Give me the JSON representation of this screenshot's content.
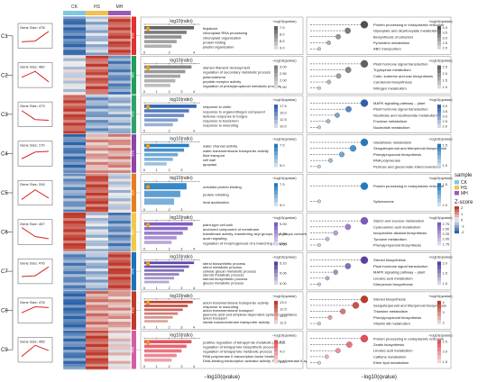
{
  "chart_data": {
    "type": "composite",
    "samples": [
      "CK",
      "HS",
      "MH"
    ],
    "sample_colors": [
      "#7ec8e3",
      "#f2c14e",
      "#9b59b6"
    ],
    "legend": {
      "sample_title": "sample",
      "zscore_title": "Z-score",
      "zscore_ticks": [
        "2",
        "1",
        "0",
        "-1",
        "-2"
      ]
    },
    "clusters": [
      {
        "id": "C1",
        "gene_label": "Gene Size: 478",
        "trend": [
          0.25,
          0.3,
          0.95
        ],
        "band": "#e03030",
        "n": "478",
        "heat": [
          -1.3,
          -0.5,
          1.3
        ],
        "go_title": "log10(ratio)",
        "go_color": "#606060",
        "go_ticks": [
          "0",
          "2",
          "4"
        ],
        "go_cbar_title": "−log10(qvalue)",
        "go_cbar": [
          "7.5",
          "8.0",
          "8.5",
          "9.0"
        ],
        "go_terms": [
          {
            "label": "thylakoid",
            "value": 4.0,
            "shade": 0.95
          },
          {
            "label": "chloroplast RNA processing",
            "value": 3.4,
            "shade": 0.75
          },
          {
            "label": "chloroplast organization",
            "value": 3.0,
            "shade": 0.55
          },
          {
            "label": "protein folding",
            "value": 2.6,
            "shade": 0.4
          },
          {
            "label": "plastid organization",
            "value": 2.2,
            "shade": 0.25
          }
        ],
        "kegg_color": "#505050",
        "kegg_cbar_title": "−log10(qvalue)",
        "kegg_cbar": [
          "4.0",
          "3.5",
          "3.0",
          "2.5",
          "2.0"
        ],
        "kegg_terms": [
          {
            "label": "Protein processing in endoplasmic reticulum",
            "q": 4.0
          },
          {
            "label": "Glyoxylate and dicarboxylate metabolism",
            "q": 3.3
          },
          {
            "label": "Biosynthesis of cofactors",
            "q": 2.9
          },
          {
            "label": "Pyrimidine metabolism",
            "q": 2.5
          },
          {
            "label": "ABC transporters",
            "q": 2.1
          }
        ]
      },
      {
        "id": "C2",
        "gene_label": "Gene Size: 482",
        "trend": [
          0.5,
          0.9,
          0.2
        ],
        "band": "#1e9e5a",
        "n": "482",
        "heat": [
          -0.2,
          1.2,
          -1.0
        ],
        "go_title": "log10(ratio)",
        "go_color": "#808080",
        "go_ticks": [
          "0",
          "1",
          "2",
          "3",
          "4"
        ],
        "go_cbar_title": "−log10(qvalue)",
        "go_cbar": [
          "3.00",
          "2.50",
          "2.00",
          "1.50"
        ],
        "go_terms": [
          {
            "label": "stamen filament development",
            "value": 3.8,
            "shade": 0.9
          },
          {
            "label": "regulation of secondary metabolic process",
            "value": 3.3,
            "shade": 0.7
          },
          {
            "label": "plasmodesma",
            "value": 2.9,
            "shade": 0.55
          },
          {
            "label": "peptide receptor activity",
            "value": 2.5,
            "shade": 0.4
          },
          {
            "label": "regulation of phenylpropanoid metabolic process",
            "value": 2.1,
            "shade": 0.25
          }
        ],
        "kegg_color": "#606060",
        "kegg_cbar_title": "−log10(qvalue)",
        "kegg_cbar": [
          "2.5",
          "2.0",
          "1.5",
          "1.0"
        ],
        "kegg_terms": [
          {
            "label": "Plant hormone signal transduction",
            "q": 2.6
          },
          {
            "label": "Tryptophan metabolism",
            "q": 2.1
          },
          {
            "label": "Cutin, suberine and wax biosynthesis",
            "q": 1.8
          },
          {
            "label": "Carotenoid biosynthesis",
            "q": 1.5
          },
          {
            "label": "Nitrogen metabolism",
            "q": 1.2
          }
        ]
      },
      {
        "id": "C3",
        "gene_label": "Gene Size: 473",
        "trend": [
          0.9,
          0.3,
          0.25
        ],
        "band": "#2fa36b",
        "n": "473",
        "heat": [
          1.3,
          -0.8,
          -0.6
        ],
        "go_title": "log10(ratio)",
        "go_color": "#2d5fb0",
        "go_ticks": [
          "0",
          "2",
          "4"
        ],
        "go_cbar_title": "−log10(qvalue)",
        "go_cbar": [
          "17.5",
          "15.0",
          "12.5",
          "10.0"
        ],
        "go_terms": [
          {
            "label": "response to chitin",
            "value": 4.2,
            "shade": 0.95
          },
          {
            "label": "response to organonitrogen compound",
            "value": 3.6,
            "shade": 0.75
          },
          {
            "label": "defense response to fungus",
            "value": 3.2,
            "shade": 0.55
          },
          {
            "label": "response to bacterium",
            "value": 2.7,
            "shade": 0.4
          },
          {
            "label": "response to wounding",
            "value": 2.3,
            "shade": 0.25
          }
        ],
        "kegg_color": "#2d5fb0",
        "kegg_cbar_title": "−log10(qvalue)",
        "kegg_cbar": [
          "4.0",
          "3.5",
          "3.0",
          "2.5",
          "2.0"
        ],
        "kegg_terms": [
          {
            "label": "MAPK signaling pathway – plant",
            "q": 4.0
          },
          {
            "label": "Plant hormone signal transduction",
            "q": 3.3
          },
          {
            "label": "Nicotinate and nicotinamide metabolism",
            "q": 2.8
          },
          {
            "label": "Fructose metabolism",
            "q": 2.4
          },
          {
            "label": "Nucleotide metabolism",
            "q": 2.0
          }
        ]
      },
      {
        "id": "C4",
        "gene_label": "Gene Size: 170",
        "trend": [
          0.3,
          0.75,
          0.8
        ],
        "band": "#8e44ad",
        "n": "170",
        "heat": [
          -1.2,
          0.6,
          0.7
        ],
        "go_title": "log10(ratio)",
        "go_color": "#1f7bc4",
        "go_ticks": [
          "0",
          "1",
          "2",
          "3"
        ],
        "go_cbar_title": "−log10(qvalue)",
        "go_cbar": [
          "7.5",
          "5.0"
        ],
        "go_terms": [
          {
            "label": "water channel activity",
            "value": 3.6,
            "shade": 0.95
          },
          {
            "label": "water transmembrane transporter activity",
            "value": 3.2,
            "shade": 0.75
          },
          {
            "label": "fluid transport",
            "value": 2.7,
            "shade": 0.5
          },
          {
            "label": "cell wall",
            "value": 2.3,
            "shade": 0.35
          },
          {
            "label": "apoplast",
            "value": 1.8,
            "shade": 0.2
          }
        ],
        "kegg_color": "#1f7bc4",
        "kegg_cbar_title": "−log10(qvalue)",
        "kegg_cbar": [
          "1.5",
          "1.0"
        ],
        "kegg_terms": [
          {
            "label": "Glutathione metabolism",
            "q": 1.7
          },
          {
            "label": "Sesquiterpenoid and triterpenoid biosynthesis",
            "q": 1.5
          },
          {
            "label": "Phenylpropanoid biosynthesis",
            "q": 1.3
          },
          {
            "label": "RNA polymerase",
            "q": 1.1
          },
          {
            "label": "Pentose and glucuronate interconversions",
            "q": 0.9
          }
        ]
      },
      {
        "id": "C5",
        "gene_label": "Gene Size: 316",
        "trend": [
          0.2,
          0.85,
          0.3
        ],
        "band": "#e87d1e",
        "n": "316",
        "heat": [
          -0.9,
          1.3,
          -0.3
        ],
        "go_title": "log10(ratio)",
        "go_color": "#1f7bc4",
        "go_ticks": [
          "0",
          "1",
          "2",
          "3"
        ],
        "go_cbar_title": "−log10(qvalue)",
        "go_cbar": [
          "7.5",
          "5.0"
        ],
        "go_terms": [
          {
            "label": "unfolded protein binding",
            "value": 3.4,
            "shade": 0.85
          },
          {
            "label": "protein refolding",
            "value": 2.9,
            "shade": 0.6
          },
          {
            "label": "heat acclimation",
            "value": 2.4,
            "shade": 0.4
          }
        ],
        "kegg_color": "#1f7bc4",
        "kegg_cbar_title": "−log10(qvalue)",
        "kegg_cbar": [
          "1.5",
          "1.0"
        ],
        "kegg_terms": [
          {
            "label": "Protein processing in endoplasmic reticulum",
            "q": 1.6
          },
          {
            "label": "Spliceosome",
            "q": 1.2
          }
        ]
      },
      {
        "id": "C6",
        "gene_label": "Gene Size: 457",
        "trend": [
          0.95,
          0.35,
          0.2
        ],
        "band": "#f2c84b",
        "n": "457",
        "heat": [
          1.4,
          -0.4,
          -1.0
        ],
        "go_title": "log10(ratio)",
        "go_color": "#7e57c2",
        "go_ticks": [
          "0",
          "1",
          "2",
          "3",
          "4"
        ],
        "go_cbar_title": "−log10(qvalue)",
        "go_cbar": [
          "5.00",
          "4.75",
          "4.50"
        ],
        "go_terms": [
          {
            "label": "plant-type cell wall",
            "value": 3.9,
            "shade": 0.95
          },
          {
            "label": "anchored component of membrane",
            "value": 3.5,
            "shade": 0.8
          },
          {
            "label": "transferase activity, transferring acyl groups, acyl groups converted into alkyl on transfer",
            "value": 3.1,
            "shade": 0.65
          },
          {
            "label": "auxin signaling",
            "value": 2.6,
            "shade": 0.5
          },
          {
            "label": "regulation of morphogenesis of a branching structure",
            "value": 2.2,
            "shade": 0.3
          }
        ],
        "kegg_color": "#7e57c2",
        "kegg_cbar_title": "−log10(qvalue)",
        "kegg_cbar": [
          "2.75",
          "2.50",
          "2.25",
          "2.00",
          "1.75"
        ],
        "kegg_terms": [
          {
            "label": "Starch and sucrose metabolism",
            "q": 2.8
          },
          {
            "label": "Cyanoamino acid metabolism",
            "q": 2.4
          },
          {
            "label": "Isoquinoline alkaloid biosynthesis",
            "q": 2.1
          },
          {
            "label": "Tyrosine metabolism",
            "q": 1.9
          },
          {
            "label": "Phenylpropanoid biosynthesis",
            "q": 1.7
          }
        ]
      },
      {
        "id": "C7",
        "gene_label": "Gene Size: 476",
        "trend": [
          0.3,
          0.35,
          0.95
        ],
        "band": "#1a73b8",
        "n": "476",
        "heat": [
          -1.0,
          -0.6,
          1.4
        ],
        "go_title": "log10(ratio)",
        "go_color": "#5a3fa6",
        "go_ticks": [
          "0",
          "1",
          "2",
          "3",
          "4"
        ],
        "go_cbar_title": "−log10(qvalue)",
        "go_cbar": [
          "5.10",
          "5.05",
          "5.00"
        ],
        "go_terms": [
          {
            "label": "sterol biosynthetic process",
            "value": 4.0,
            "shade": 0.95
          },
          {
            "label": "sterol metabolic process",
            "value": 3.6,
            "shade": 0.8
          },
          {
            "label": "cellular glucan metabolic process",
            "value": 3.2,
            "shade": 0.65
          },
          {
            "label": "steroid metabolic process",
            "value": 2.8,
            "shade": 0.5
          },
          {
            "label": "steroid biosynthetic process",
            "value": 2.4,
            "shade": 0.35
          },
          {
            "label": "glucan metabolic process",
            "value": 2.0,
            "shade": 0.2
          }
        ],
        "kegg_color": "#5a3fa6",
        "kegg_cbar_title": "−log10(qvalue)",
        "kegg_cbar": [
          "2.0",
          "1.5",
          "1.0"
        ],
        "kegg_terms": [
          {
            "label": "Steroid biosynthesis",
            "q": 2.1
          },
          {
            "label": "Plant hormone signal transduction",
            "q": 1.7
          },
          {
            "label": "MAPK signaling pathway – plant",
            "q": 1.4
          },
          {
            "label": "Linoleic acid metabolism",
            "q": 1.2
          },
          {
            "label": "Diterpenoid biosynthesis",
            "q": 1.0
          }
        ]
      },
      {
        "id": "C8",
        "gene_label": "Gene Size: 478",
        "trend": [
          0.5,
          0.9,
          0.85
        ],
        "band": "#c0392b",
        "n": "478",
        "heat": [
          -1.4,
          0.8,
          0.6
        ],
        "go_title": "log10(ratio)",
        "go_color": "#c0392b",
        "go_ticks": [
          "0",
          "1",
          "2",
          "3",
          "4"
        ],
        "go_cbar_title": "−log10(qvalue)",
        "go_cbar": [
          "13.0",
          "12.5",
          "12.0",
          "11.5"
        ],
        "go_terms": [
          {
            "label": "anion transmembrane transporter activity",
            "value": 3.9,
            "shade": 0.95
          },
          {
            "label": "response to wounding",
            "value": 3.5,
            "shade": 0.8
          },
          {
            "label": "anion transmembrane transport",
            "value": 3.1,
            "shade": 0.65
          },
          {
            "label": "jasmonic acid and ethylene-dependent systemic resistance",
            "value": 2.7,
            "shade": 0.5
          },
          {
            "label": "anion transport",
            "value": 2.3,
            "shade": 0.35
          },
          {
            "label": "nitrate transmembrane transporter activity",
            "value": 1.9,
            "shade": 0.2
          }
        ],
        "kegg_color": "#c0392b",
        "kegg_cbar_title": "−log10(qvalue)",
        "kegg_cbar": [
          "4",
          "3",
          "2"
        ],
        "kegg_terms": [
          {
            "label": "Steroid biosynthesis",
            "q": 4.2
          },
          {
            "label": "Sesquiterpenoid and triterpenoid biosynthesis",
            "q": 3.8
          },
          {
            "label": "Thiamine metabolism",
            "q": 3.2
          },
          {
            "label": "Phenylpropanoid biosynthesis",
            "q": 2.6
          },
          {
            "label": "Vitamin B6 metabolism",
            "q": 2.1
          }
        ]
      },
      {
        "id": "C9",
        "gene_label": "Gene Size: 456",
        "trend": [
          0.2,
          0.95,
          0.6
        ],
        "band": "#d35ea8",
        "n": "456",
        "heat": [
          -1.2,
          1.3,
          0.2
        ],
        "go_title": "log10(ratio)",
        "go_color": "#e74c5b",
        "go_ticks": [
          "0",
          "1",
          "2",
          "3",
          "4"
        ],
        "go_cbar_title": "−log10(qvalue)",
        "go_cbar": [
          "4.2",
          "4.0",
          "3.8"
        ],
        "go_terms": [
          {
            "label": "positive regulation of tetrapyrrole metabolic process",
            "value": 3.8,
            "shade": 0.95
          },
          {
            "label": "regulation of tetrapyrrole biosynthetic process",
            "value": 3.4,
            "shade": 0.8
          },
          {
            "label": "regulation of tetrapyrrole metabolic process",
            "value": 3.0,
            "shade": 0.65
          },
          {
            "label": "RNA polymerase II transcription factor binding",
            "value": 2.6,
            "shade": 0.5
          },
          {
            "label": "DNA-binding transcription activator activity, RNA polymerase II-specific",
            "value": 2.2,
            "shade": 0.3
          }
        ],
        "kegg_color": "#e74c5b",
        "kegg_cbar_title": "−log10(qvalue)",
        "kegg_cbar": [
          "2.5",
          "2.0",
          "1.5"
        ],
        "kegg_terms": [
          {
            "label": "Protein processing in endoplasmic reticulum",
            "q": 2.6
          },
          {
            "label": "Zeatin biosynthesis",
            "q": 2.2
          },
          {
            "label": "Linoleic acid metabolism",
            "q": 1.9
          },
          {
            "label": "Caffeine metabolism",
            "q": 1.6
          },
          {
            "label": "Ether lipid metabolism",
            "q": 1.4
          }
        ]
      }
    ],
    "go_xlabel": "−log10(qvalue)",
    "kegg_xlabel": "−log10(qvalue)"
  }
}
